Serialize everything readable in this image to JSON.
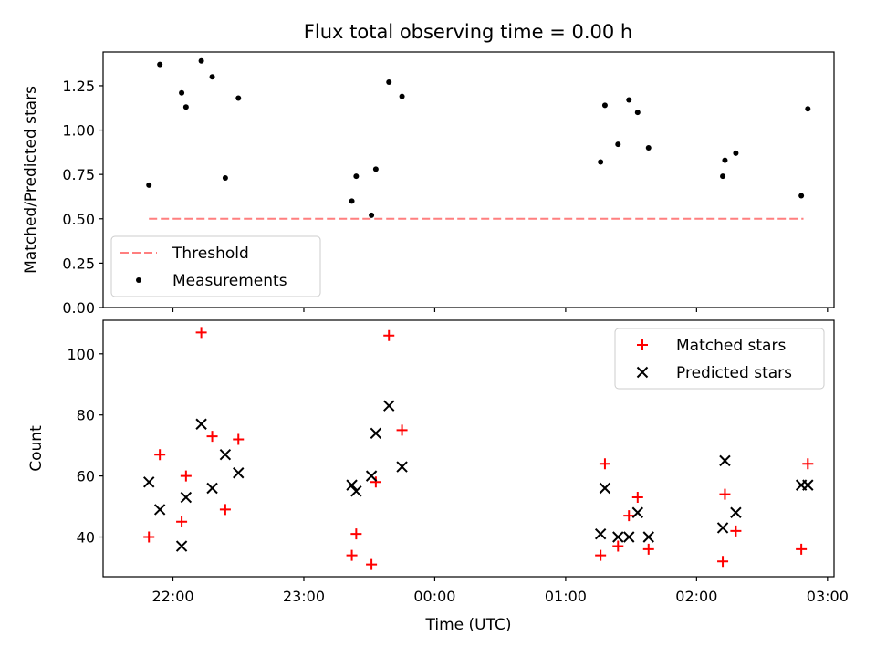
{
  "chart_data": [
    {
      "type": "scatter",
      "title": "Flux total observing time = 0.00 h",
      "xlabel": "",
      "ylabel": "Matched/Predicted stars",
      "xlim": [
        "21:28",
        "03:03"
      ],
      "ylim": [
        0,
        1.44
      ],
      "yticks": [
        0.0,
        0.25,
        0.5,
        0.75,
        1.0,
        1.25
      ],
      "ytick_labels": [
        "0.00",
        "0.25",
        "0.50",
        "0.75",
        "1.00",
        "1.25"
      ],
      "legend": {
        "placement": "lower-left",
        "entries": [
          "Threshold",
          "Measurements"
        ]
      },
      "grid": false,
      "series": [
        {
          "name": "Threshold",
          "kind": "dashed-line",
          "color": "#ff7f7f",
          "x": [
            "21:49",
            "02:49"
          ],
          "y": [
            0.5,
            0.5
          ]
        },
        {
          "name": "Measurements",
          "kind": "points",
          "color": "#000000",
          "x": [
            "21:49",
            "21:54",
            "22:04",
            "22:06",
            "22:13",
            "22:18",
            "22:24",
            "22:30",
            "23:22",
            "23:24",
            "23:31",
            "23:33",
            "23:39",
            "23:45",
            "01:16",
            "01:18",
            "01:24",
            "01:29",
            "01:33",
            "01:38",
            "02:12",
            "02:13",
            "02:18",
            "02:48",
            "02:51"
          ],
          "y": [
            0.69,
            1.37,
            1.21,
            1.13,
            1.39,
            1.3,
            0.73,
            1.18,
            0.6,
            0.74,
            0.52,
            0.78,
            1.27,
            1.19,
            0.82,
            1.14,
            0.92,
            1.17,
            1.1,
            0.9,
            0.74,
            0.83,
            0.87,
            0.63,
            1.12
          ]
        }
      ]
    },
    {
      "type": "scatter",
      "title": "",
      "xlabel": "Time (UTC)",
      "ylabel": "Count",
      "xlim": [
        "21:28",
        "03:03"
      ],
      "xticks": [
        "22:00",
        "23:00",
        "00:00",
        "01:00",
        "02:00",
        "03:00"
      ],
      "ylim": [
        27,
        111
      ],
      "yticks": [
        40,
        60,
        80,
        100
      ],
      "legend": {
        "placement": "top-right",
        "entries": [
          "Matched stars",
          "Predicted stars"
        ]
      },
      "grid": false,
      "series": [
        {
          "name": "Matched stars",
          "marker": "+",
          "color": "#ff0000",
          "x": [
            "21:49",
            "21:54",
            "22:04",
            "22:06",
            "22:13",
            "22:18",
            "22:24",
            "22:30",
            "23:22",
            "23:24",
            "23:31",
            "23:33",
            "23:39",
            "23:45",
            "01:16",
            "01:18",
            "01:24",
            "01:29",
            "01:33",
            "01:38",
            "02:12",
            "02:13",
            "02:18",
            "02:48",
            "02:51"
          ],
          "y": [
            40,
            67,
            45,
            60,
            107,
            73,
            49,
            72,
            34,
            41,
            31,
            58,
            106,
            75,
            34,
            64,
            37,
            47,
            53,
            36,
            32,
            54,
            42,
            36,
            64
          ]
        },
        {
          "name": "Predicted stars",
          "marker": "x",
          "color": "#000000",
          "x": [
            "21:49",
            "21:54",
            "22:04",
            "22:06",
            "22:13",
            "22:18",
            "22:24",
            "22:30",
            "23:22",
            "23:24",
            "23:31",
            "23:33",
            "23:39",
            "23:45",
            "01:16",
            "01:18",
            "01:24",
            "01:29",
            "01:33",
            "01:38",
            "02:12",
            "02:13",
            "02:18",
            "02:48",
            "02:51"
          ],
          "y": [
            58,
            49,
            37,
            53,
            77,
            56,
            67,
            61,
            57,
            55,
            60,
            74,
            83,
            63,
            41,
            56,
            40,
            40,
            48,
            40,
            43,
            65,
            48,
            57,
            57
          ]
        }
      ]
    }
  ]
}
